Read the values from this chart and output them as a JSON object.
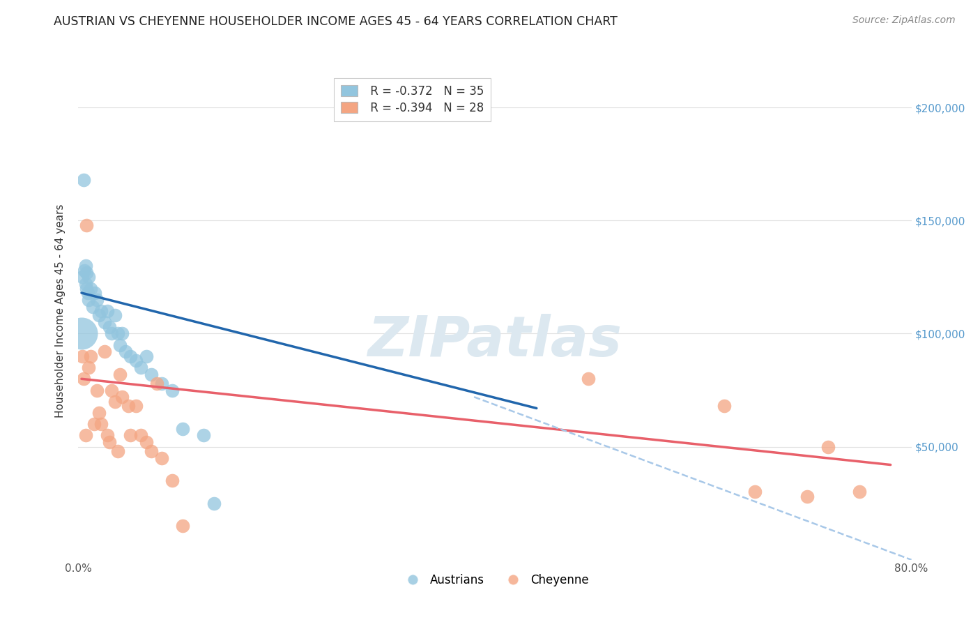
{
  "title": "AUSTRIAN VS CHEYENNE HOUSEHOLDER INCOME AGES 45 - 64 YEARS CORRELATION CHART",
  "source": "Source: ZipAtlas.com",
  "ylabel": "Householder Income Ages 45 - 64 years",
  "xlim": [
    0.0,
    0.8
  ],
  "ylim": [
    0,
    220000
  ],
  "legend_blue_r": "R = -0.372",
  "legend_blue_n": "N = 35",
  "legend_pink_r": "R = -0.394",
  "legend_pink_n": "N = 28",
  "blue_color": "#92c5de",
  "pink_color": "#f4a582",
  "blue_line_color": "#2166ac",
  "pink_line_color": "#e8606a",
  "dashed_line_color": "#a8c8e8",
  "background_color": "#ffffff",
  "grid_color": "#e0e0e0",
  "title_color": "#222222",
  "source_color": "#888888",
  "watermark_text": "ZIPatlas",
  "watermark_color": "#dce8f0",
  "austrians_x": [
    0.004,
    0.005,
    0.006,
    0.007,
    0.007,
    0.008,
    0.008,
    0.009,
    0.01,
    0.01,
    0.012,
    0.014,
    0.016,
    0.018,
    0.02,
    0.022,
    0.025,
    0.028,
    0.03,
    0.032,
    0.035,
    0.038,
    0.04,
    0.042,
    0.045,
    0.05,
    0.055,
    0.06,
    0.065,
    0.07,
    0.08,
    0.09,
    0.1,
    0.12,
    0.13
  ],
  "austrians_y": [
    125000,
    168000,
    128000,
    122000,
    130000,
    127000,
    120000,
    118000,
    125000,
    115000,
    120000,
    112000,
    118000,
    115000,
    108000,
    110000,
    105000,
    110000,
    103000,
    100000,
    108000,
    100000,
    95000,
    100000,
    92000,
    90000,
    88000,
    85000,
    90000,
    82000,
    78000,
    75000,
    58000,
    55000,
    25000
  ],
  "austrians_big_x": [
    0.003
  ],
  "austrians_big_y": [
    100000
  ],
  "cheyenne_x": [
    0.004,
    0.005,
    0.007,
    0.008,
    0.01,
    0.012,
    0.015,
    0.018,
    0.02,
    0.022,
    0.025,
    0.028,
    0.03,
    0.032,
    0.035,
    0.038,
    0.04,
    0.042,
    0.048,
    0.05,
    0.055,
    0.06,
    0.065,
    0.07,
    0.075,
    0.08,
    0.09,
    0.1
  ],
  "cheyenne_y": [
    90000,
    80000,
    55000,
    148000,
    85000,
    90000,
    60000,
    75000,
    65000,
    60000,
    92000,
    55000,
    52000,
    75000,
    70000,
    48000,
    82000,
    72000,
    68000,
    55000,
    68000,
    55000,
    52000,
    48000,
    78000,
    45000,
    35000,
    15000
  ],
  "cheyenne_extra_x": [
    0.49,
    0.62,
    0.65,
    0.7,
    0.72,
    0.75
  ],
  "cheyenne_extra_y": [
    80000,
    68000,
    30000,
    28000,
    50000,
    30000
  ],
  "blue_trend_x": [
    0.003,
    0.44
  ],
  "blue_trend_y": [
    118000,
    67000
  ],
  "pink_trend_x": [
    0.003,
    0.78
  ],
  "pink_trend_y": [
    80000,
    42000
  ],
  "dashed_trend_x": [
    0.38,
    0.8
  ],
  "dashed_trend_y": [
    72000,
    0
  ],
  "yright_labels": [
    "$50,000",
    "$100,000",
    "$150,000",
    "$200,000"
  ],
  "yright_values": [
    50000,
    100000,
    150000,
    200000
  ],
  "xtick_positions": [
    0.0,
    0.1,
    0.2,
    0.3,
    0.4,
    0.5,
    0.6,
    0.7,
    0.8
  ]
}
